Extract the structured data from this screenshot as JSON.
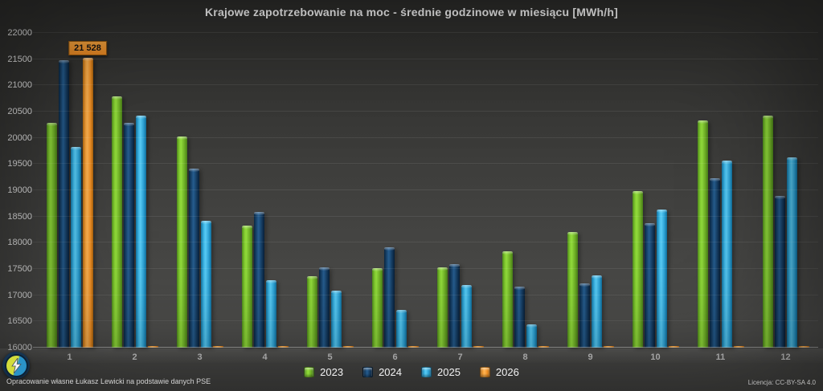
{
  "chart_data": {
    "type": "bar",
    "title": "Krajowe zapotrzebowanie na moc - średnie godzinowe w miesiącu [MWh/h]",
    "xlabel": "",
    "ylabel": "",
    "ylim": [
      16000,
      22000
    ],
    "y_ticks": [
      16000,
      16500,
      17000,
      17500,
      18000,
      18500,
      19000,
      19500,
      20000,
      20500,
      21000,
      21500,
      22000
    ],
    "grid": true,
    "legend_position": "bottom-center",
    "categories": [
      "1",
      "2",
      "3",
      "4",
      "5",
      "6",
      "7",
      "8",
      "9",
      "10",
      "11",
      "12"
    ],
    "series": [
      {
        "name": "2023",
        "color": "#76B82B",
        "values": [
          20280,
          20790,
          20020,
          18330,
          17360,
          17520,
          17530,
          17830,
          18210,
          18980,
          20330,
          20430
        ]
      },
      {
        "name": "2024",
        "color": "#17375E",
        "values": [
          21480,
          20280,
          19410,
          18590,
          17530,
          17920,
          17600,
          17170,
          17230,
          18370,
          19230,
          18890
        ]
      },
      {
        "name": "2025",
        "color": "#2BA7DC",
        "values": [
          19830,
          20430,
          18420,
          17280,
          17080,
          16720,
          17200,
          16450,
          17380,
          18640,
          19560,
          19630
        ]
      },
      {
        "name": "2026",
        "color": "#F79435",
        "values": [
          21528,
          null,
          null,
          null,
          null,
          null,
          null,
          null,
          null,
          null,
          null,
          null
        ]
      }
    ],
    "annotation": {
      "label": "21 528",
      "category": "1",
      "series": "2026"
    }
  },
  "footer": {
    "credit": "Opracowanie własne Łukasz Lewicki na podstawie danych PSE",
    "license": "Licencja: CC-BY-SA 4.0"
  },
  "icons": {
    "logo": "lightning-bolt-logo"
  },
  "colors": {
    "background": "#454543",
    "title_text": "#FFFFFF",
    "axis_text": "#E8E8E8",
    "annotation_bg": "#F79435"
  }
}
